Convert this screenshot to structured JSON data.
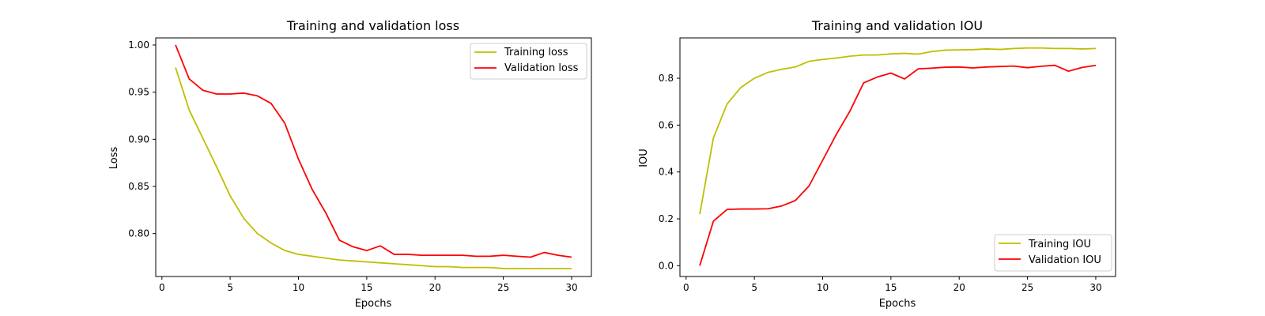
{
  "chart_data": [
    {
      "type": "line",
      "title": "Training and validation loss",
      "xlabel": "Epochs",
      "ylabel": "Loss",
      "xlim": [
        -0.45,
        31.45
      ],
      "ylim": [
        0.7545,
        1.0075
      ],
      "xticks": [
        0,
        5,
        10,
        15,
        20,
        25,
        30
      ],
      "xtick_labels": [
        "0",
        "5",
        "10",
        "15",
        "20",
        "25",
        "30"
      ],
      "yticks": [
        0.8,
        0.85,
        0.9,
        0.95,
        1.0
      ],
      "ytick_labels": [
        "0.80",
        "0.85",
        "0.90",
        "0.95",
        "1.00"
      ],
      "grid": false,
      "legend_position": "upper-right",
      "x": [
        1,
        2,
        3,
        4,
        5,
        6,
        7,
        8,
        9,
        10,
        11,
        12,
        13,
        14,
        15,
        16,
        17,
        18,
        19,
        20,
        21,
        22,
        23,
        24,
        25,
        26,
        27,
        28,
        29,
        30
      ],
      "series": [
        {
          "name": "Training loss",
          "color": "#bfbf00",
          "values": [
            0.976,
            0.931,
            0.901,
            0.871,
            0.84,
            0.816,
            0.8,
            0.79,
            0.782,
            0.778,
            0.776,
            0.774,
            0.772,
            0.771,
            0.77,
            0.769,
            0.768,
            0.767,
            0.766,
            0.765,
            0.765,
            0.764,
            0.764,
            0.764,
            0.763,
            0.763,
            0.763,
            0.763,
            0.763,
            0.763
          ]
        },
        {
          "name": "Validation loss",
          "color": "#ff0000",
          "values": [
            1.0,
            0.964,
            0.952,
            0.948,
            0.948,
            0.949,
            0.946,
            0.938,
            0.917,
            0.879,
            0.847,
            0.822,
            0.793,
            0.786,
            0.782,
            0.787,
            0.778,
            0.778,
            0.777,
            0.777,
            0.777,
            0.777,
            0.776,
            0.776,
            0.777,
            0.776,
            0.775,
            0.78,
            0.777,
            0.775
          ]
        }
      ]
    },
    {
      "type": "line",
      "title": "Training and validation IOU",
      "xlabel": "Epochs",
      "ylabel": "IOU",
      "xlim": [
        -0.45,
        31.45
      ],
      "ylim": [
        -0.046,
        0.972
      ],
      "xticks": [
        0,
        5,
        10,
        15,
        20,
        25,
        30
      ],
      "xtick_labels": [
        "0",
        "5",
        "10",
        "15",
        "20",
        "25",
        "30"
      ],
      "yticks": [
        0.0,
        0.2,
        0.4,
        0.6,
        0.8
      ],
      "ytick_labels": [
        "0.0",
        "0.2",
        "0.4",
        "0.6",
        "0.8"
      ],
      "grid": false,
      "legend_position": "lower-right",
      "x": [
        1,
        2,
        3,
        4,
        5,
        6,
        7,
        8,
        9,
        10,
        11,
        12,
        13,
        14,
        15,
        16,
        17,
        18,
        19,
        20,
        21,
        22,
        23,
        24,
        25,
        26,
        27,
        28,
        29,
        30
      ],
      "series": [
        {
          "name": "Training IOU",
          "color": "#bfbf00",
          "values": [
            0.22,
            0.545,
            0.69,
            0.76,
            0.8,
            0.825,
            0.838,
            0.848,
            0.872,
            0.88,
            0.886,
            0.894,
            0.899,
            0.899,
            0.904,
            0.906,
            0.903,
            0.914,
            0.92,
            0.921,
            0.922,
            0.925,
            0.923,
            0.927,
            0.929,
            0.929,
            0.927,
            0.927,
            0.925,
            0.927
          ]
        },
        {
          "name": "Validation IOU",
          "color": "#ff0000",
          "values": [
            0.0,
            0.19,
            0.24,
            0.242,
            0.242,
            0.243,
            0.255,
            0.278,
            0.34,
            0.45,
            0.56,
            0.66,
            0.78,
            0.805,
            0.822,
            0.797,
            0.84,
            0.843,
            0.847,
            0.848,
            0.844,
            0.848,
            0.85,
            0.852,
            0.845,
            0.851,
            0.855,
            0.83,
            0.846,
            0.855
          ]
        }
      ]
    }
  ]
}
